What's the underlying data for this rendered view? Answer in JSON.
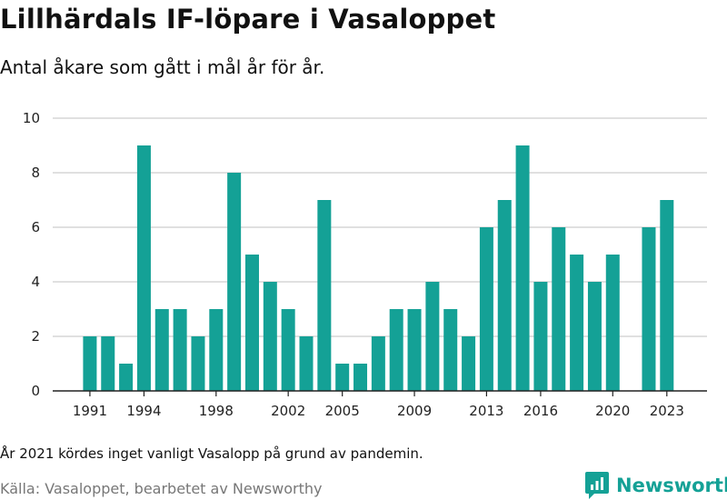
{
  "title": "Lillhärdals IF-löpare i Vasaloppet",
  "subtitle": "Antal åkare som gått i mål år för år.",
  "note": "År 2021 kördes inget vanligt Vasalopp på grund av pandemin.",
  "source": "Källa: Vasaloppet, bearbetet av Newsworthy",
  "brand": {
    "name": "Newsworthy"
  },
  "colors": {
    "bar": "#14a196",
    "grid": "#d6d6d6",
    "axis": "#222222",
    "brand": "#14a196"
  },
  "chart_data": {
    "type": "bar",
    "title": "Lillhärdals IF-löpare i Vasaloppet",
    "subtitle": "Antal åkare som gått i mål år för år.",
    "categories": [
      1991,
      1992,
      1993,
      1994,
      1995,
      1996,
      1997,
      1998,
      1999,
      2000,
      2001,
      2002,
      2003,
      2004,
      2005,
      2006,
      2007,
      2008,
      2009,
      2010,
      2011,
      2012,
      2013,
      2014,
      2015,
      2016,
      2017,
      2018,
      2019,
      2020,
      2021,
      2022,
      2023
    ],
    "values": [
      2,
      2,
      1,
      9,
      3,
      3,
      2,
      3,
      8,
      5,
      4,
      3,
      2,
      7,
      1,
      1,
      2,
      3,
      3,
      4,
      3,
      2,
      6,
      7,
      9,
      4,
      6,
      5,
      4,
      5,
      null,
      6,
      7
    ],
    "x_ticks": [
      "1991",
      "1994",
      "1998",
      "2002",
      "2005",
      "2009",
      "2013",
      "2016",
      "2020",
      "2023"
    ],
    "y_ticks": [
      0,
      2,
      4,
      6,
      8,
      10
    ],
    "ylim": [
      0,
      10
    ],
    "xlabel": "",
    "ylabel": "",
    "grid": true,
    "legend": "none"
  }
}
